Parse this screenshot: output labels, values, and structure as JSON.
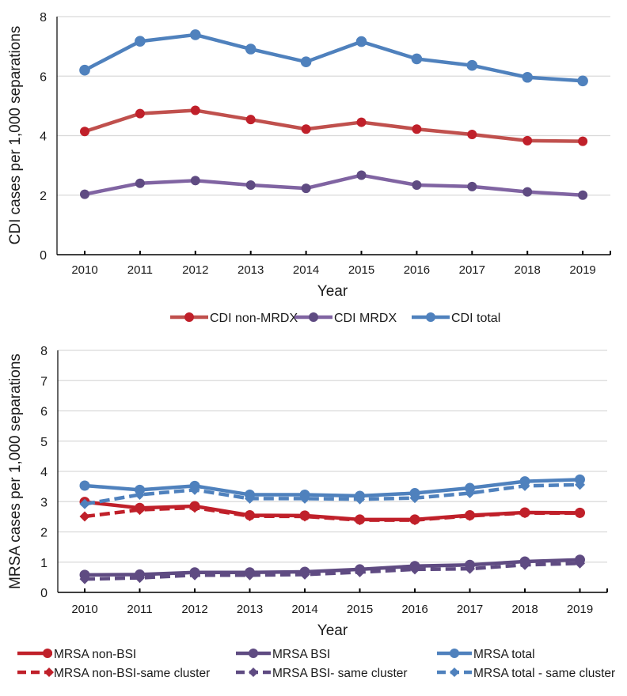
{
  "chart_data": [
    {
      "type": "line",
      "title": "",
      "xlabel": "Year",
      "ylabel": "CDI cases per 1,000 separations",
      "ylim": [
        0,
        8
      ],
      "yticks": [
        "0",
        "2",
        "4",
        "6",
        "8"
      ],
      "ytick_values": [
        0,
        2,
        4,
        6,
        8
      ],
      "grid": true,
      "legend": "bottom",
      "categories": [
        "2010",
        "2011",
        "2012",
        "2013",
        "2014",
        "2015",
        "2016",
        "2017",
        "2018",
        "2019"
      ],
      "series": [
        {
          "name": "CDI non-MRDX",
          "color": "#c0504d",
          "marker_color": "#c0202a",
          "marker": "circle",
          "dash": false,
          "values": [
            4.14,
            4.74,
            4.85,
            4.54,
            4.22,
            4.45,
            4.22,
            4.04,
            3.83,
            3.81
          ]
        },
        {
          "name": "CDI MRDX",
          "color": "#8064a2",
          "marker_color": "#5f4b82",
          "marker": "circle",
          "dash": false,
          "values": [
            2.03,
            2.4,
            2.49,
            2.34,
            2.23,
            2.67,
            2.34,
            2.29,
            2.11,
            2.0
          ]
        },
        {
          "name": "CDI total",
          "color": "#4f81bd",
          "marker_color": "#4f81bd",
          "marker": "circle",
          "dash": false,
          "values": [
            6.2,
            7.17,
            7.39,
            6.91,
            6.48,
            7.16,
            6.58,
            6.36,
            5.96,
            5.84
          ]
        }
      ]
    },
    {
      "type": "line",
      "title": "",
      "xlabel": "Year",
      "ylabel": "MRSA cases per 1,000 separations",
      "ylim": [
        0,
        8
      ],
      "yticks": [
        "0",
        "1",
        "2",
        "3",
        "4",
        "5",
        "6",
        "7",
        "8"
      ],
      "ytick_values": [
        0,
        1,
        2,
        3,
        4,
        5,
        6,
        7,
        8
      ],
      "grid": true,
      "legend": "bottom",
      "categories": [
        "2010",
        "2011",
        "2012",
        "2013",
        "2014",
        "2015",
        "2016",
        "2017",
        "2018",
        "2019"
      ],
      "series": [
        {
          "name": "MRSA non-BSI",
          "color": "#c0202a",
          "marker_color": "#c0202a",
          "marker": "circle",
          "dash": false,
          "values": [
            2.99,
            2.79,
            2.85,
            2.55,
            2.54,
            2.41,
            2.41,
            2.55,
            2.64,
            2.63
          ]
        },
        {
          "name": "MRSA BSI",
          "color": "#5f4b82",
          "marker_color": "#5f4b82",
          "marker": "circle",
          "dash": false,
          "values": [
            0.58,
            0.59,
            0.66,
            0.66,
            0.68,
            0.76,
            0.87,
            0.91,
            1.02,
            1.08
          ]
        },
        {
          "name": "MRSA total",
          "color": "#4f81bd",
          "marker_color": "#4f81bd",
          "marker": "circle",
          "dash": false,
          "values": [
            3.53,
            3.39,
            3.52,
            3.23,
            3.23,
            3.19,
            3.28,
            3.45,
            3.67,
            3.73
          ]
        },
        {
          "name": "MRSA non-BSI-same cluster",
          "color": "#c0202a",
          "marker_color": "#c0202a",
          "marker": "diamond",
          "dash": true,
          "values": [
            2.51,
            2.73,
            2.8,
            2.52,
            2.51,
            2.39,
            2.39,
            2.53,
            2.62,
            2.62
          ]
        },
        {
          "name": "MRSA BSI-same cluster",
          "color": "#5f4b82",
          "marker_color": "#5f4b82",
          "marker": "diamond",
          "dash": true,
          "values": [
            0.44,
            0.48,
            0.57,
            0.57,
            0.59,
            0.67,
            0.76,
            0.78,
            0.91,
            0.96
          ]
        },
        {
          "name": "MRSA total-same cluster",
          "color": "#4f81bd",
          "marker_color": "#4f81bd",
          "marker": "diamond",
          "dash": true,
          "values": [
            2.92,
            3.23,
            3.39,
            3.1,
            3.1,
            3.08,
            3.12,
            3.28,
            3.52,
            3.56
          ]
        }
      ],
      "legend_labels": [
        "MRSA non-BSI",
        "MRSA BSI",
        "MRSA total",
        "MRSA non-BSI-same cluster",
        "MRSA BSI- same cluster",
        "MRSA total - same cluster"
      ]
    }
  ]
}
